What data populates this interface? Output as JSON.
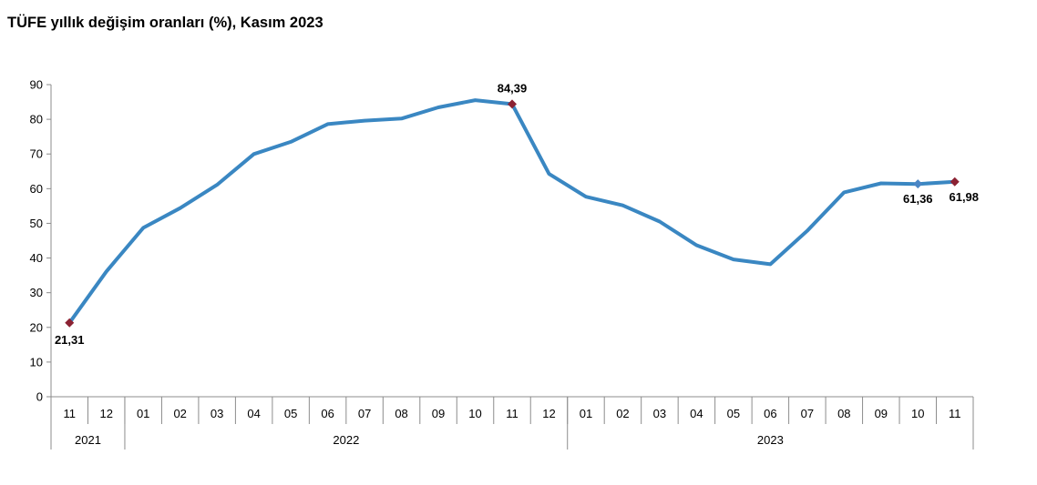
{
  "title": "TÜFE yıllık değişim oranları (%), Kasım 2023",
  "chart_data": {
    "type": "line",
    "title": "TÜFE yıllık değişim oranları (%), Kasım 2023",
    "xlabel": "",
    "ylabel": "",
    "ylim": [
      0,
      90
    ],
    "yticks": [
      0,
      10,
      20,
      30,
      40,
      50,
      60,
      70,
      80,
      90
    ],
    "grid": false,
    "categories": [
      "11",
      "12",
      "01",
      "02",
      "03",
      "04",
      "05",
      "06",
      "07",
      "08",
      "09",
      "10",
      "11",
      "12",
      "01",
      "02",
      "03",
      "04",
      "05",
      "06",
      "07",
      "08",
      "09",
      "10",
      "11"
    ],
    "year_groups": [
      {
        "label": "2021",
        "start": 0,
        "end": 1
      },
      {
        "label": "2022",
        "start": 2,
        "end": 13
      },
      {
        "label": "2023",
        "start": 14,
        "end": 24
      }
    ],
    "series": [
      {
        "color": "#3A87C2",
        "values": [
          21.31,
          36.1,
          48.7,
          54.4,
          61.1,
          69.97,
          73.5,
          78.6,
          79.6,
          80.2,
          83.45,
          85.51,
          84.39,
          64.27,
          57.68,
          55.18,
          50.51,
          43.68,
          39.59,
          38.21,
          47.83,
          58.94,
          61.53,
          61.36,
          61.98
        ]
      }
    ],
    "annotations": [
      {
        "index": 0,
        "text": "21,31",
        "marker_color": "#8B2233"
      },
      {
        "index": 12,
        "text": "84,39",
        "marker_color": "#8B2233"
      },
      {
        "index": 23,
        "text": "61,36",
        "marker_color": "#4A86C5"
      },
      {
        "index": 24,
        "text": "61,98",
        "marker_color": "#8B2233"
      }
    ]
  }
}
